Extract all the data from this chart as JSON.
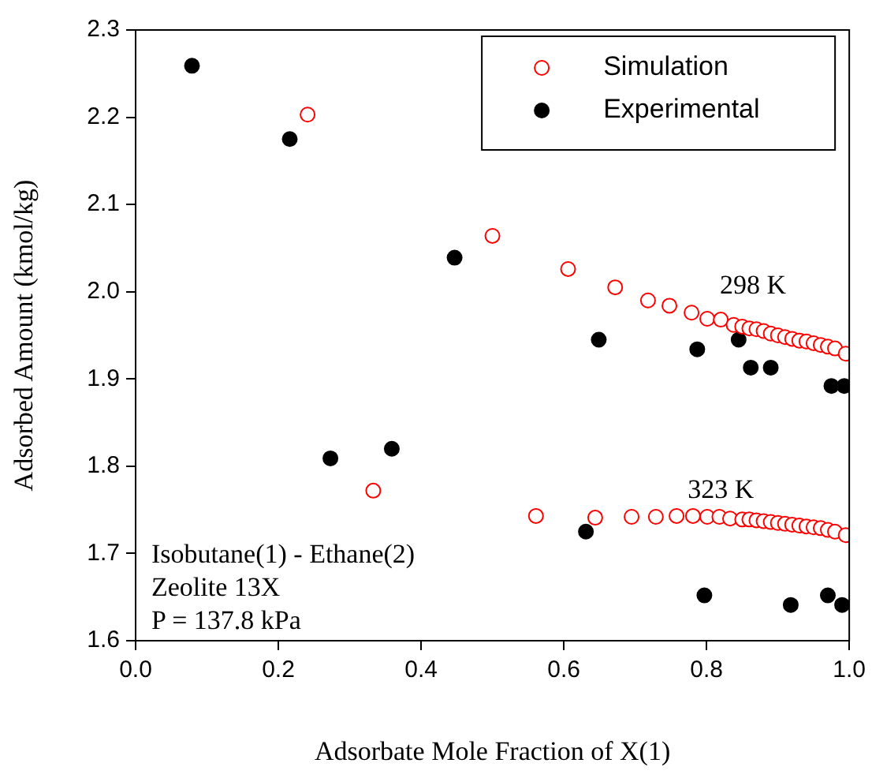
{
  "chart_data": {
    "type": "scatter",
    "xlabel": "Adsorbate Mole Fraction of X(1)",
    "ylabel": "Adsorbed Amount (kmol/kg)",
    "xlim": [
      0,
      1
    ],
    "xticks": [
      {
        "value": 0,
        "label": "0.0"
      },
      0.2,
      0.4,
      0.6,
      0.8,
      {
        "value": 1,
        "label": "1.0"
      }
    ],
    "ylim": [
      1.6,
      2.3
    ],
    "yticks": [
      1.6,
      1.7,
      1.8,
      1.9,
      {
        "value": 2,
        "label": "2.0"
      },
      2.1,
      2.2,
      2.3
    ],
    "grid": false,
    "legend": "top right",
    "marker": "circle",
    "series": [
      {
        "name": "Simulation",
        "color": "#ff0000",
        "x": [
          0.241,
          0.5,
          0.606,
          0.672,
          0.718,
          0.748,
          0.779,
          0.801,
          0.82,
          0.838,
          0.85,
          0.86,
          0.87,
          0.88,
          0.89,
          0.9,
          0.91,
          0.92,
          0.93,
          0.94,
          0.95,
          0.96,
          0.97,
          0.98,
          0.995,
          0.333,
          0.561,
          0.644,
          0.695,
          0.729,
          0.758,
          0.781,
          0.801,
          0.818,
          0.833,
          0.85,
          0.86,
          0.87,
          0.88,
          0.89,
          0.9,
          0.91,
          0.92,
          0.93,
          0.94,
          0.95,
          0.96,
          0.97,
          0.98,
          0.995
        ],
        "values": [
          2.203,
          2.064,
          2.026,
          2.005,
          1.99,
          1.984,
          1.976,
          1.969,
          1.968,
          1.962,
          1.96,
          1.958,
          1.957,
          1.955,
          1.952,
          1.95,
          1.948,
          1.946,
          1.944,
          1.943,
          1.941,
          1.939,
          1.937,
          1.935,
          1.929,
          1.772,
          1.743,
          1.741,
          1.742,
          1.742,
          1.743,
          1.743,
          1.742,
          1.742,
          1.74,
          1.739,
          1.739,
          1.738,
          1.737,
          1.736,
          1.735,
          1.734,
          1.733,
          1.732,
          1.731,
          1.73,
          1.729,
          1.727,
          1.725,
          1.721
        ]
      },
      {
        "name": "Experimental",
        "color": "#000000",
        "x": [
          0.079,
          0.216,
          0.447,
          0.273,
          0.359,
          0.649,
          0.787,
          0.845,
          0.862,
          0.89,
          0.975,
          0.993,
          0.631,
          0.797,
          0.918,
          0.97,
          0.99
        ],
        "values": [
          2.259,
          2.175,
          2.039,
          1.809,
          1.82,
          1.945,
          1.934,
          1.945,
          1.913,
          1.913,
          1.892,
          1.892,
          1.725,
          1.652,
          1.641,
          1.652,
          1.641
        ]
      }
    ],
    "annotations": [
      "298 K",
      "323 K",
      "Isobutane(1) - Ethane(2)",
      "Zeolite 13X",
      "P = 137.8 kPa"
    ]
  }
}
